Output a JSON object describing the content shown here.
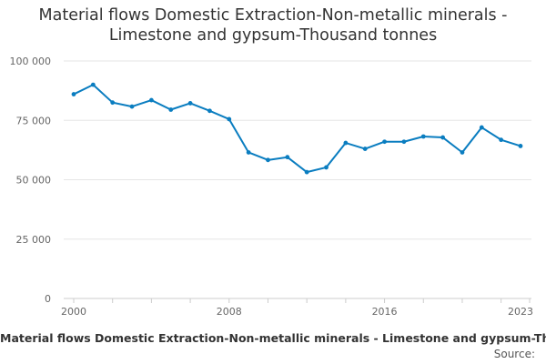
{
  "chart_data": {
    "type": "line",
    "title_lines": [
      "Material flows Domestic Extraction-Non-metallic minerals -",
      "Limestone and gypsum-Thousand tonnes"
    ],
    "caption": "Material flows Domestic Extraction-Non-metallic minerals - Limestone and gypsum-Thousand tonnes",
    "source_label": "Source:",
    "x": [
      2000,
      2001,
      2002,
      2003,
      2004,
      2005,
      2006,
      2007,
      2008,
      2009,
      2010,
      2011,
      2012,
      2013,
      2014,
      2015,
      2016,
      2017,
      2018,
      2019,
      2020,
      2021,
      2022,
      2023
    ],
    "series": [
      {
        "values": [
          86000,
          90000,
          82500,
          80800,
          83500,
          79500,
          82200,
          79000,
          75500,
          61500,
          58300,
          59500,
          53200,
          55200,
          65500,
          63000,
          66000,
          66000,
          68200,
          67800,
          61500,
          72000,
          66800,
          64200
        ]
      }
    ],
    "xlim": [
      2000,
      2023
    ],
    "ylim": [
      0,
      100000
    ],
    "x_ticks": [
      2000,
      2008,
      2016,
      2023
    ],
    "y_ticks": [
      0,
      25000,
      50000,
      75000,
      100000
    ],
    "y_tick_labels": [
      "0",
      "25 000",
      "50 000",
      "75 000",
      "100 000"
    ],
    "grid": true,
    "colors": {
      "line": "#0a7dc0",
      "grid": "#e6e6e6",
      "axis": "#cccccc"
    }
  }
}
